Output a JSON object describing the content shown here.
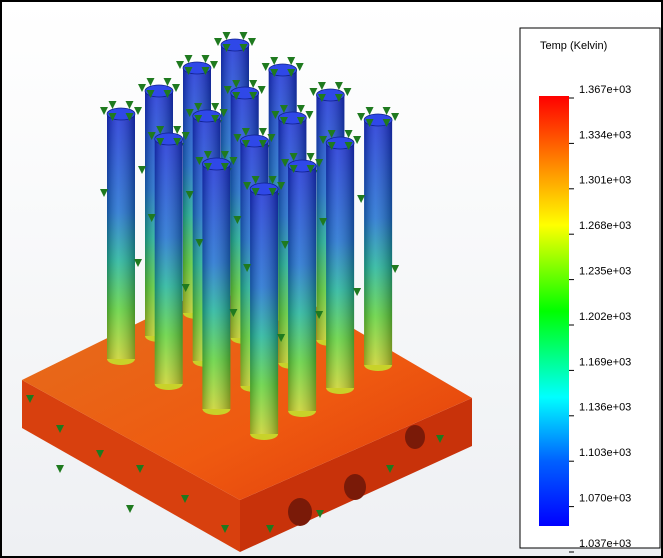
{
  "legend": {
    "title": "Temp (Kelvin)",
    "labels": [
      "1.367e+03",
      "1.334e+03",
      "1.301e+03",
      "1.268e+03",
      "1.235e+03",
      "1.202e+03",
      "1.169e+03",
      "1.136e+03",
      "1.103e+03",
      "1.070e+03",
      "1.037e+03"
    ]
  }
}
